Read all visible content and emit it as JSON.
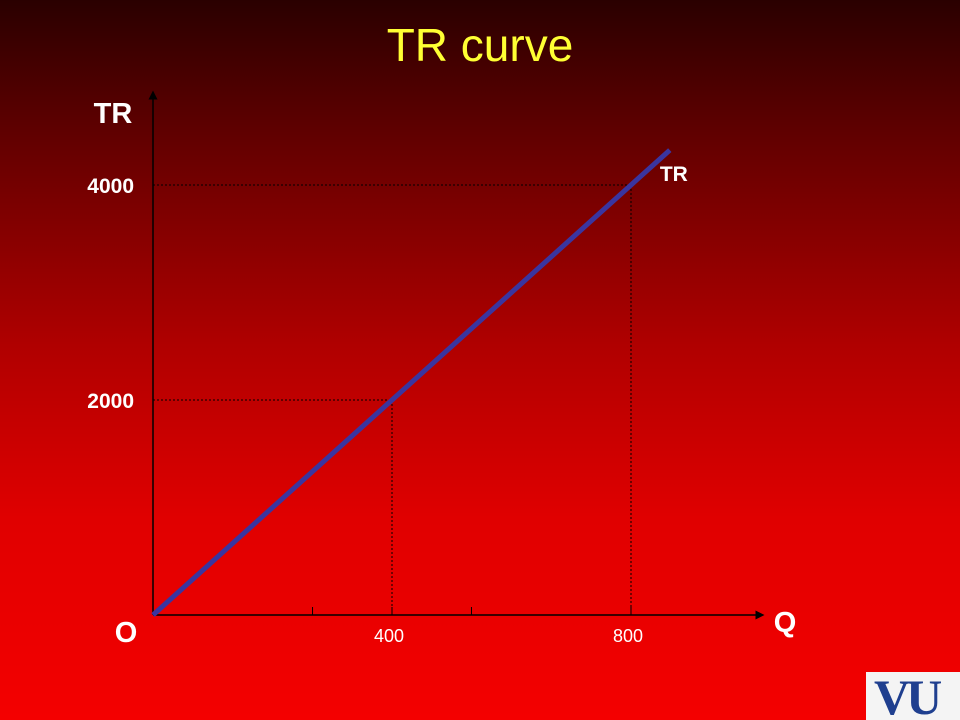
{
  "slide": {
    "title": "TR curve"
  },
  "chart_data": {
    "type": "line",
    "title": "TR curve",
    "xlabel": "Q",
    "ylabel": "TR",
    "origin_label": "O",
    "series": [
      {
        "name": "TR",
        "color": "#3a35a0",
        "points": [
          [
            0,
            0
          ],
          [
            400,
            2000
          ],
          [
            800,
            4000
          ],
          [
            865,
            4325
          ]
        ]
      }
    ],
    "x_ticks": [
      {
        "value": 400,
        "label": "400"
      },
      {
        "value": 800,
        "label": "800"
      }
    ],
    "x_minor_ticks": [
      267,
      533
    ],
    "y_ticks": [
      {
        "value": 2000,
        "label": "2000"
      },
      {
        "value": 4000,
        "label": "4000"
      }
    ],
    "guides": [
      {
        "x": 400,
        "y": 2000
      },
      {
        "x": 800,
        "y": 4000
      }
    ],
    "xlim": [
      0,
      1000
    ],
    "ylim": [
      0,
      4800
    ],
    "grid": false
  },
  "logo": {
    "text": "VU"
  }
}
